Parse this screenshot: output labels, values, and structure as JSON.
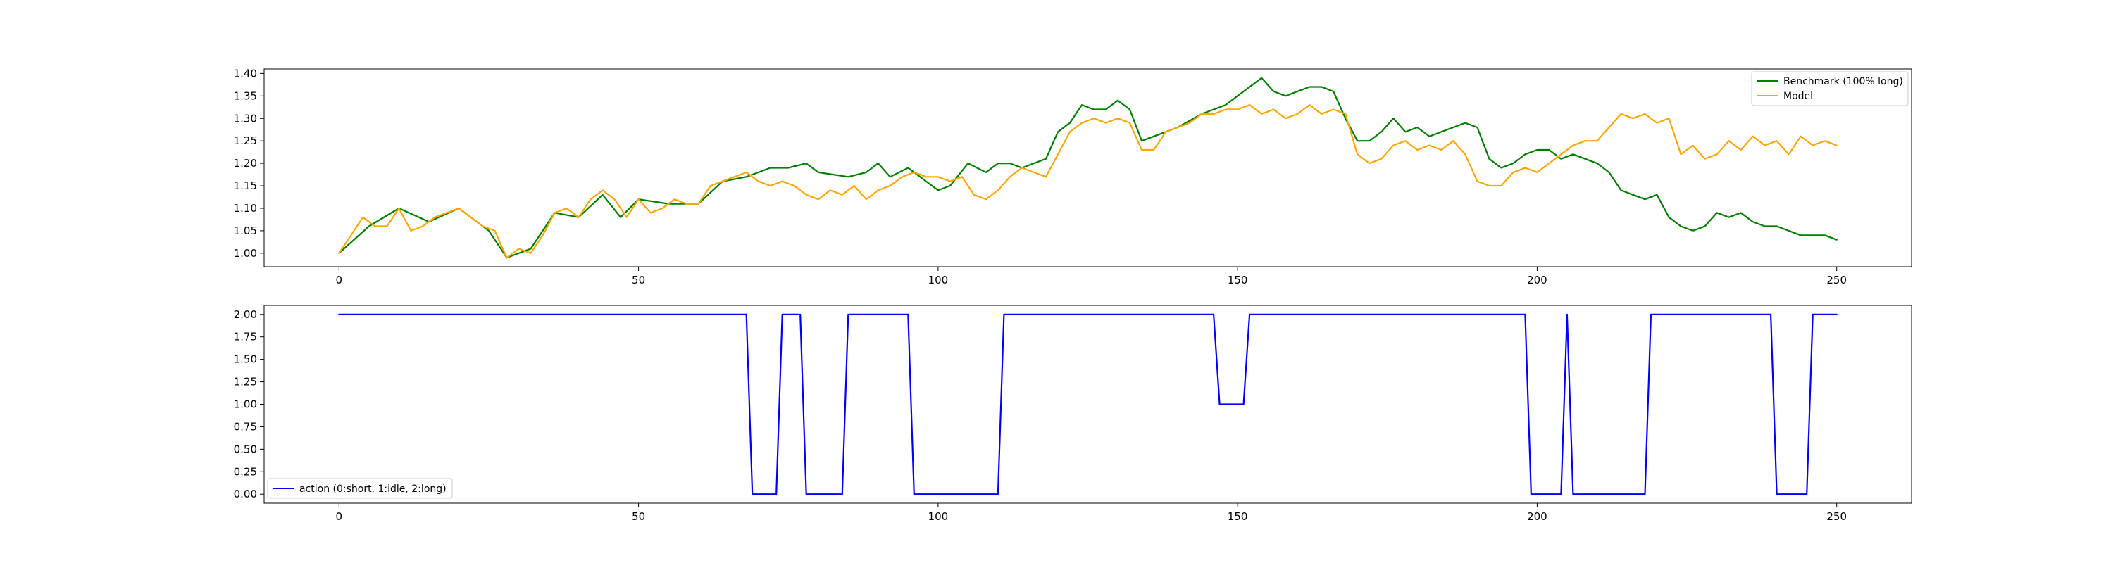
{
  "chart_data": [
    {
      "type": "line",
      "xlim": [
        -12.5,
        262.5
      ],
      "ylim": [
        0.97,
        1.41
      ],
      "x_ticks": [
        0,
        50,
        100,
        150,
        200,
        250
      ],
      "x_tick_labels": [
        "0",
        "50",
        "100",
        "150",
        "200",
        "250"
      ],
      "y_ticks": [
        1.0,
        1.05,
        1.1,
        1.15,
        1.2,
        1.25,
        1.3,
        1.35,
        1.4
      ],
      "y_tick_labels": [
        "1.00",
        "1.05",
        "1.10",
        "1.15",
        "1.20",
        "1.25",
        "1.30",
        "1.35",
        "1.40"
      ],
      "grid": false,
      "legend_position": "top-right",
      "series": [
        {
          "name": "Benchmark (100% long)",
          "color": "#008000",
          "x": [
            0,
            5,
            10,
            15,
            20,
            25,
            28,
            32,
            36,
            40,
            44,
            47,
            50,
            55,
            60,
            64,
            68,
            70,
            72,
            75,
            78,
            80,
            85,
            88,
            90,
            92,
            95,
            98,
            100,
            102,
            105,
            108,
            110,
            112,
            114,
            118,
            120,
            122,
            124,
            126,
            128,
            130,
            132,
            134,
            136,
            140,
            144,
            146,
            148,
            150,
            152,
            154,
            156,
            158,
            160,
            162,
            164,
            166,
            168,
            170,
            172,
            174,
            176,
            178,
            180,
            182,
            184,
            186,
            188,
            190,
            192,
            194,
            196,
            198,
            200,
            202,
            204,
            206,
            208,
            210,
            212,
            214,
            216,
            218,
            220,
            222,
            224,
            226,
            228,
            230,
            232,
            234,
            236,
            238,
            240,
            242,
            244,
            246,
            248,
            250
          ],
          "y": [
            1.0,
            1.06,
            1.1,
            1.07,
            1.1,
            1.05,
            0.99,
            1.01,
            1.09,
            1.08,
            1.13,
            1.08,
            1.12,
            1.11,
            1.11,
            1.16,
            1.17,
            1.18,
            1.19,
            1.19,
            1.2,
            1.18,
            1.17,
            1.18,
            1.2,
            1.17,
            1.19,
            1.16,
            1.14,
            1.15,
            1.2,
            1.18,
            1.2,
            1.2,
            1.19,
            1.21,
            1.27,
            1.29,
            1.33,
            1.32,
            1.32,
            1.34,
            1.32,
            1.25,
            1.26,
            1.28,
            1.31,
            1.32,
            1.33,
            1.35,
            1.37,
            1.39,
            1.36,
            1.35,
            1.36,
            1.37,
            1.37,
            1.36,
            1.3,
            1.25,
            1.25,
            1.27,
            1.3,
            1.27,
            1.28,
            1.26,
            1.27,
            1.28,
            1.29,
            1.28,
            1.21,
            1.19,
            1.2,
            1.22,
            1.23,
            1.23,
            1.21,
            1.22,
            1.21,
            1.2,
            1.18,
            1.14,
            1.13,
            1.12,
            1.13,
            1.08,
            1.06,
            1.05,
            1.06,
            1.09,
            1.08,
            1.09,
            1.07,
            1.06,
            1.06,
            1.05,
            1.04,
            1.04,
            1.04,
            1.03
          ]
        },
        {
          "name": "Model",
          "color": "#FFA500",
          "x": [
            0,
            2,
            4,
            6,
            8,
            10,
            12,
            14,
            16,
            18,
            20,
            22,
            24,
            26,
            28,
            30,
            32,
            34,
            36,
            38,
            40,
            42,
            44,
            46,
            48,
            50,
            52,
            54,
            56,
            58,
            60,
            62,
            64,
            66,
            68,
            70,
            72,
            74,
            76,
            78,
            80,
            82,
            84,
            86,
            88,
            90,
            92,
            94,
            96,
            98,
            100,
            102,
            104,
            106,
            108,
            110,
            112,
            114,
            116,
            118,
            120,
            122,
            124,
            126,
            128,
            130,
            132,
            134,
            136,
            138,
            140,
            142,
            144,
            146,
            148,
            150,
            152,
            154,
            156,
            158,
            160,
            162,
            164,
            166,
            168,
            170,
            172,
            174,
            176,
            178,
            180,
            182,
            184,
            186,
            188,
            190,
            192,
            194,
            196,
            198,
            200,
            202,
            204,
            206,
            208,
            210,
            212,
            214,
            216,
            218,
            220,
            222,
            224,
            226,
            228,
            230,
            232,
            234,
            236,
            238,
            240,
            242,
            244,
            246,
            248,
            250
          ],
          "y": [
            1.0,
            1.04,
            1.08,
            1.06,
            1.06,
            1.1,
            1.05,
            1.06,
            1.08,
            1.09,
            1.1,
            1.08,
            1.06,
            1.05,
            0.99,
            1.01,
            1.0,
            1.04,
            1.09,
            1.1,
            1.08,
            1.12,
            1.14,
            1.12,
            1.08,
            1.12,
            1.09,
            1.1,
            1.12,
            1.11,
            1.11,
            1.15,
            1.16,
            1.17,
            1.18,
            1.16,
            1.15,
            1.16,
            1.15,
            1.13,
            1.12,
            1.14,
            1.13,
            1.15,
            1.12,
            1.14,
            1.15,
            1.17,
            1.18,
            1.17,
            1.17,
            1.16,
            1.17,
            1.13,
            1.12,
            1.14,
            1.17,
            1.19,
            1.18,
            1.17,
            1.22,
            1.27,
            1.29,
            1.3,
            1.29,
            1.3,
            1.29,
            1.23,
            1.23,
            1.27,
            1.28,
            1.29,
            1.31,
            1.31,
            1.32,
            1.32,
            1.33,
            1.31,
            1.32,
            1.3,
            1.31,
            1.33,
            1.31,
            1.32,
            1.31,
            1.22,
            1.2,
            1.21,
            1.24,
            1.25,
            1.23,
            1.24,
            1.23,
            1.25,
            1.22,
            1.16,
            1.15,
            1.15,
            1.18,
            1.19,
            1.18,
            1.2,
            1.22,
            1.24,
            1.25,
            1.25,
            1.28,
            1.31,
            1.3,
            1.31,
            1.29,
            1.3,
            1.22,
            1.24,
            1.21,
            1.22,
            1.25,
            1.23,
            1.26,
            1.24,
            1.25,
            1.22,
            1.26,
            1.24,
            1.25,
            1.24
          ]
        }
      ]
    },
    {
      "type": "line",
      "xlim": [
        -12.5,
        262.5
      ],
      "ylim": [
        -0.1,
        2.1
      ],
      "x_ticks": [
        0,
        50,
        100,
        150,
        200,
        250
      ],
      "x_tick_labels": [
        "0",
        "50",
        "100",
        "150",
        "200",
        "250"
      ],
      "y_ticks": [
        0.0,
        0.25,
        0.5,
        0.75,
        1.0,
        1.25,
        1.5,
        1.75,
        2.0
      ],
      "y_tick_labels": [
        "0.00",
        "0.25",
        "0.50",
        "0.75",
        "1.00",
        "1.25",
        "1.50",
        "1.75",
        "2.00"
      ],
      "grid": false,
      "legend_position": "bottom-left",
      "series": [
        {
          "name": "action (0:short, 1:idle, 2:long)",
          "color": "#0000FF",
          "x": [
            0,
            68,
            69,
            73,
            74,
            77,
            78,
            84,
            85,
            95,
            96,
            110,
            111,
            146,
            147,
            151,
            152,
            198,
            199,
            204,
            205,
            206,
            218,
            219,
            239,
            240,
            245,
            246,
            250
          ],
          "y": [
            2,
            2,
            0,
            0,
            2,
            2,
            0,
            0,
            2,
            2,
            0,
            0,
            2,
            2,
            1,
            1,
            2,
            2,
            0,
            0,
            2,
            0,
            0,
            2,
            2,
            0,
            0,
            2,
            2
          ]
        }
      ]
    }
  ]
}
